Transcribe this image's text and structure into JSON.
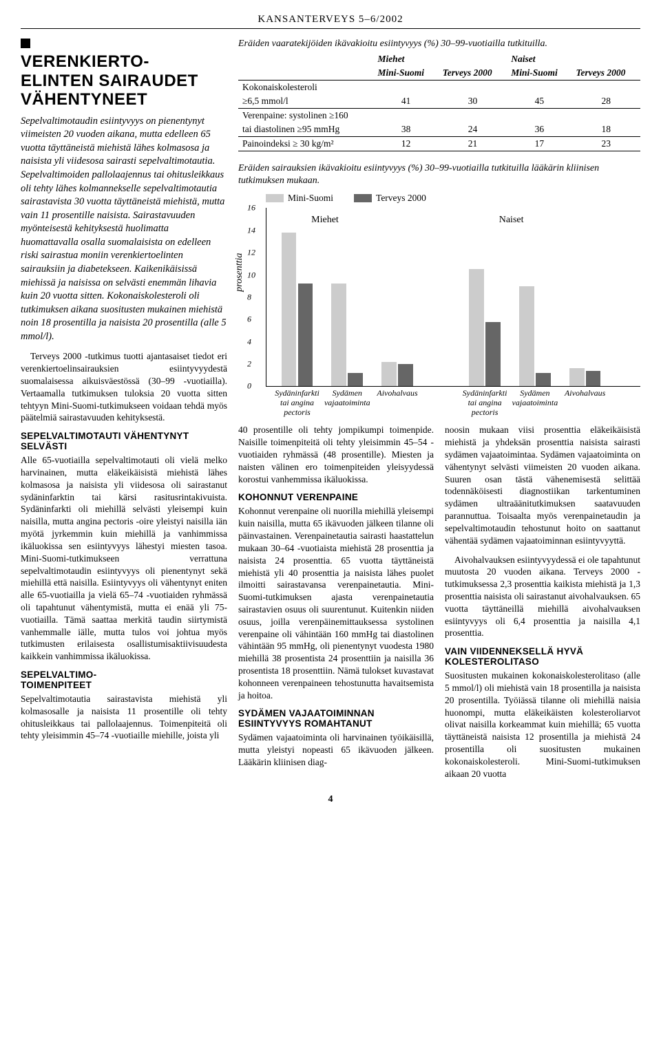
{
  "header": "KANSANTERVEYS 5–6/2002",
  "page_number": "4",
  "left": {
    "headline": "VERENKIERTO-\nELINTEN SAIRAUDET\nVÄHENTYNEET",
    "intro": "Sepelvaltimotaudin esiintyvyys on pienentynyt viimeisten 20 vuoden aikana, mutta edelleen 65 vuotta täyttäneistä miehistä lähes kolmasosa ja naisista yli viidesosa sairasti sepelvaltimotautia. Sepelvaltimoiden pallolaajennus tai ohitusleikkaus oli tehty lähes kolmannekselle sepelvaltimotautia sairastavista 30 vuotta täyttäneistä miehistä, mutta vain 11 prosentille naisista. Sairastavuuden myönteisestä kehityksestä huolimatta huomattavalla osalla suomalaisista on edelleen riski sairastua moniin verenkiertoelinten sairauksiin ja diabetekseen. Kaikenikäisissä miehissä ja naisissa on selvästi enemmän lihavia kuin 20 vuotta sitten. Kokonaiskolesteroli oli tutkimuksen aikana suositusten mukainen miehistä noin 18 prosentilla ja naisista 20 prosentilla (alle 5 mmol/l).",
    "p1": "Terveys 2000 -tutkimus tuotti ajantasaiset tiedot eri verenkiertoelinsairauksien esiintyvyydestä suomalaisessa aikuisväestössä (30–99 -vuotiailla). Vertaamalla tutkimuksen tuloksia 20 vuotta sitten tehtyyn Mini-Suomi-tutkimukseen voidaan tehdä myös päätelmiä sairastavuuden kehityksestä.",
    "sub1": "SEPELVALTIMOTAUTI VÄHENTYNYT SELVÄSTI",
    "p2": "Alle 65-vuotiailla sepelvaltimotauti oli vielä melko harvinainen, mutta eläkeikäisistä miehistä lähes kolmasosa ja naisista yli viidesosa oli sairastanut sydäninfarktin tai kärsi rasitusrintakivuista. Sydäninfarkti oli miehillä selvästi yleisempi kuin naisilla, mutta angina pectoris -oire yleistyi naisilla iän myötä jyrkemmin kuin miehillä ja vanhimmissa ikäluokissa sen esiintyvyys lähestyi miesten tasoa. Mini-Suomi-tutkimukseen verrattuna sepelvaltimotaudin esiintyvyys oli pienentynyt sekä miehillä että naisilla. Esiintyvyys oli vähentynyt eniten alle 65-vuotiailla ja vielä 65–74 -vuotiaiden ryhmässä oli tapahtunut vähentymistä, mutta ei enää yli 75-vuotiailla. Tämä saattaa merkitä taudin siirtymistä vanhemmalle iälle, mutta tulos voi johtua myös tutkimusten erilaisesta osallistumisaktiivisuudesta kaikkein vanhimmissa ikäluokissa.",
    "sub2": "SEPELVALTIMO-\nTOIMENPITEET",
    "p3": "Sepelvaltimotautia sairastavista miehistä yli kolmasosalle ja naisista 11 prosentille oli tehty ohitusleikkaus tai pallolaajennus. Toimenpiteitä oli tehty yleisimmin 45–74 -vuotiaille miehille, joista yli"
  },
  "table": {
    "caption": "Eräiden vaaratekijöiden ikävakioitu esiintyvyys (%) 30–99-vuotiailla tutkituilla.",
    "grp_m": "Miehet",
    "grp_n": "Naiset",
    "col1": "Mini-Suomi",
    "col2": "Terveys 2000",
    "rows": [
      {
        "label_line1": "Kokonaiskolesteroli",
        "label_line2": "≥6,5 mmol/l",
        "v": [
          "41",
          "30",
          "45",
          "28"
        ]
      },
      {
        "label_line1": "Verenpaine: systolinen ≥160",
        "label_line2": "tai diastolinen ≥95 mmHg",
        "v": [
          "38",
          "24",
          "36",
          "18"
        ]
      },
      {
        "label_line1": "Painoindeksi  ≥ 30 kg/m²",
        "label_line2": "",
        "v": [
          "12",
          "21",
          "17",
          "23"
        ]
      }
    ]
  },
  "chart": {
    "title": "Eräiden sairauksien ikävakioitu esiintyvyys (%) 30–99-vuotiailla tutkituilla lääkärin kliinisen tutkimuksen mukaan.",
    "legend1": "Mini-Suomi",
    "legend2": "Terveys 2000",
    "color1": "#cccccc",
    "color2": "#666666",
    "ylabel": "prosenttia",
    "ymax": 16,
    "ytick_step": 2,
    "group_m": "Miehet",
    "group_n": "Naiset",
    "categories": [
      "Sydäninfarkti\ntai angina pectoris",
      "Sydämen\nvajaatoiminta",
      "Aivohalvaus"
    ],
    "men": {
      "mini": [
        13.8,
        9.2,
        2.2
      ],
      "t2000": [
        9.2,
        1.2,
        2.0
      ]
    },
    "women": {
      "mini": [
        10.5,
        9.0,
        1.6
      ],
      "t2000": [
        5.8,
        1.2,
        1.4
      ]
    },
    "bar_width_pct": 4.0,
    "bar_gap_pct": 0.4,
    "cluster_gap_pct": 5.0,
    "panel_gap_pct": 10.0,
    "left_pad_pct": 4.0
  },
  "right": {
    "mid_p": "40 prosentille oli tehty jompikumpi toimenpide. Naisille toimenpiteitä oli tehty yleisimmin 45–54 -vuotiaiden ryhmässä (48 prosentille). Miesten ja naisten välinen ero toimenpiteiden yleisyydessä korostui vanhemmissa ikäluokissa.",
    "sub3": "KOHONNUT VERENPAINE",
    "mid_p2": "Kohonnut verenpaine oli nuorilla miehillä yleisempi kuin naisilla, mutta 65 ikävuoden jälkeen tilanne oli päinvastainen. Verenpainetautia sairasti haastattelun mukaan 30–64 -vuotiaista miehistä 28 prosenttia ja naisista 24 prosenttia. 65 vuotta täyttäneistä miehistä yli 40 prosenttia ja naisista lähes puolet ilmoitti sairastavansa verenpainetautia. Mini-Suomi-tutkimuksen ajasta verenpainetautia sairastavien osuus oli suurentunut. Kuitenkin niiden osuus, joilla verenpäinemittauksessa systolinen verenpaine oli vähintään 160 mmHg tai diastolinen vähintään 95 mmHg, oli pienentynyt vuodesta 1980 miehillä 38 prosentista 24 prosenttiin ja naisilla 36 prosentista 18 prosenttiin. Nämä tulokset kuvastavat kohonneen verenpaineen tehostunutta havaitsemista ja hoitoa.",
    "sub4": "SYDÄMEN VAJAATOIMINNAN ESIINTYVYYS ROMAHTANUT",
    "mid_p3": "Sydämen vajaatoiminta oli harvinainen työikäisillä, mutta yleistyi nopeasti 65 ikävuoden jälkeen. Lääkärin kliinisen diag-",
    "right_p1": "noosin mukaan viisi prosenttia eläkeikäisistä miehistä ja yhdeksän prosenttia naisista sairasti sydämen vajaatoimintaa. Sydämen vajaatoiminta on vähentynyt selvästi viimeisten 20 vuoden aikana. Suuren osan tästä vähenemisestä selittää todennäköisesti diagnostiikan tarkentuminen sydämen ultraäänitutkimuksen saatavuuden parannuttua. Toisaalta myös verenpainetaudin ja sepelvaltimotaudin tehostunut hoito on saattanut vähentää sydämen vajaatoiminnan esiintyvyyttä.",
    "right_p2": "Aivohalvauksen esiintyvyydessä ei ole tapahtunut muutosta 20 vuoden aikana. Terveys 2000 -tutkimuksessa 2,3 prosenttia kaikista miehistä ja 1,3 prosenttia naisista oli sairastanut aivohalvauksen. 65 vuotta täyttäneillä miehillä aivohalvauksen esiintyvyys oli 6,4 prosenttia ja naisilla 4,1 prosenttia.",
    "sub5": "VAIN VIIDENNEKSELLÄ HYVÄ KOLESTEROLITASO",
    "right_p3": "Suositusten mukainen kokonaiskolesterolitaso (alle 5 mmol/l) oli miehistä vain 18 prosentilla ja naisista 20 prosentilla. Työiässä tilanne oli miehillä naisia huonompi, mutta eläkeikäisten kolesteroliarvot olivat naisilla korkeammat kuin miehillä; 65 vuotta täyttäneistä naisista 12 prosentilla ja miehistä 24 prosentilla oli suositusten mukainen kokonaiskolesteroli. Mini-Suomi-tutkimuksen aikaan 20 vuotta"
  }
}
